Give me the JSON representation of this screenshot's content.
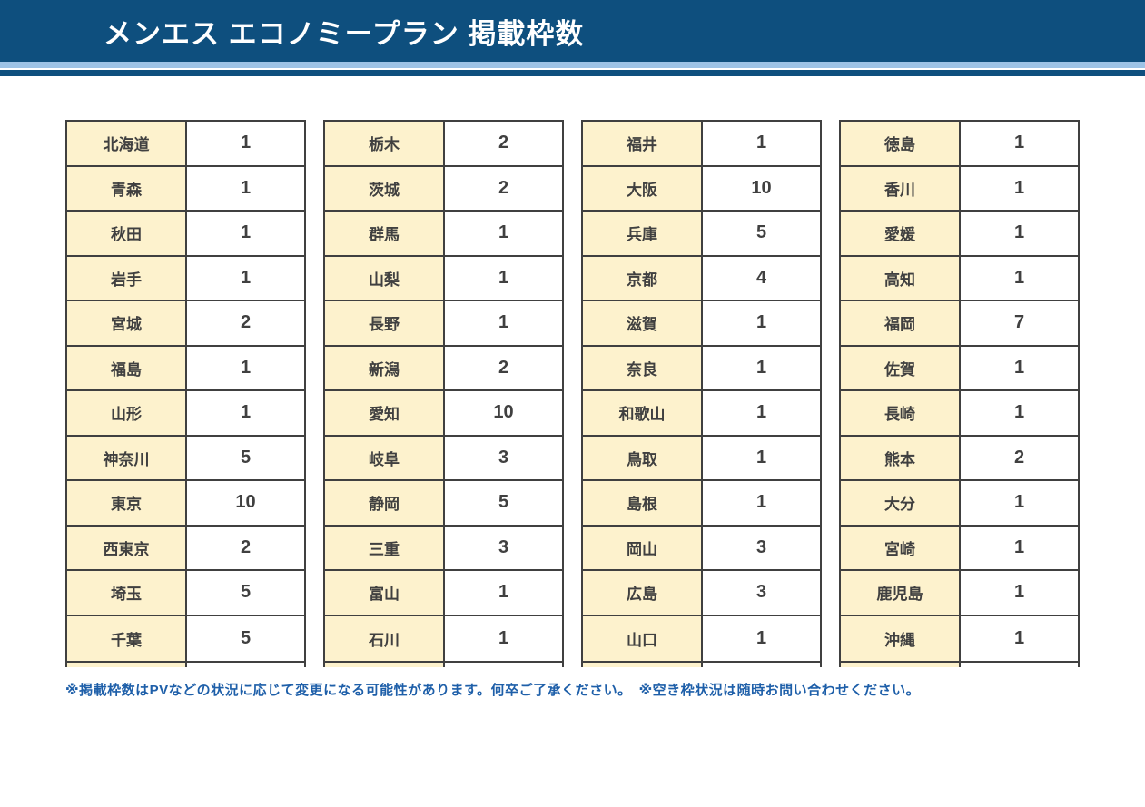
{
  "header": {
    "title": "メンエス エコノミープラン 掲載枠数"
  },
  "tables": [
    {
      "rows": [
        {
          "region": "北海道",
          "slots": "1"
        },
        {
          "region": "青森",
          "slots": "1"
        },
        {
          "region": "秋田",
          "slots": "1"
        },
        {
          "region": "岩手",
          "slots": "1"
        },
        {
          "region": "宮城",
          "slots": "2"
        },
        {
          "region": "福島",
          "slots": "1"
        },
        {
          "region": "山形",
          "slots": "1"
        },
        {
          "region": "神奈川",
          "slots": "5"
        },
        {
          "region": "東京",
          "slots": "10"
        },
        {
          "region": "西東京",
          "slots": "2"
        },
        {
          "region": "埼玉",
          "slots": "5"
        },
        {
          "region": "千葉",
          "slots": "5"
        }
      ]
    },
    {
      "rows": [
        {
          "region": "栃木",
          "slots": "2"
        },
        {
          "region": "茨城",
          "slots": "2"
        },
        {
          "region": "群馬",
          "slots": "1"
        },
        {
          "region": "山梨",
          "slots": "1"
        },
        {
          "region": "長野",
          "slots": "1"
        },
        {
          "region": "新潟",
          "slots": "2"
        },
        {
          "region": "愛知",
          "slots": "10"
        },
        {
          "region": "岐阜",
          "slots": "3"
        },
        {
          "region": "静岡",
          "slots": "5"
        },
        {
          "region": "三重",
          "slots": "3"
        },
        {
          "region": "富山",
          "slots": "1"
        },
        {
          "region": "石川",
          "slots": "1"
        }
      ]
    },
    {
      "rows": [
        {
          "region": "福井",
          "slots": "1"
        },
        {
          "region": "大阪",
          "slots": "10"
        },
        {
          "region": "兵庫",
          "slots": "5"
        },
        {
          "region": "京都",
          "slots": "4"
        },
        {
          "region": "滋賀",
          "slots": "1"
        },
        {
          "region": "奈良",
          "slots": "1"
        },
        {
          "region": "和歌山",
          "slots": "1"
        },
        {
          "region": "鳥取",
          "slots": "1"
        },
        {
          "region": "島根",
          "slots": "1"
        },
        {
          "region": "岡山",
          "slots": "3"
        },
        {
          "region": "広島",
          "slots": "3"
        },
        {
          "region": "山口",
          "slots": "1"
        }
      ]
    },
    {
      "rows": [
        {
          "region": "徳島",
          "slots": "1"
        },
        {
          "region": "香川",
          "slots": "1"
        },
        {
          "region": "愛媛",
          "slots": "1"
        },
        {
          "region": "高知",
          "slots": "1"
        },
        {
          "region": "福岡",
          "slots": "7"
        },
        {
          "region": "佐賀",
          "slots": "1"
        },
        {
          "region": "長崎",
          "slots": "1"
        },
        {
          "region": "熊本",
          "slots": "2"
        },
        {
          "region": "大分",
          "slots": "1"
        },
        {
          "region": "宮崎",
          "slots": "1"
        },
        {
          "region": "鹿児島",
          "slots": "1"
        },
        {
          "region": "沖縄",
          "slots": "1"
        }
      ]
    }
  ],
  "footnote": "※掲載枠数はPVなどの状況に応じて変更になる可能性があります。何卒ご了承ください。　※空き枠状況は随時お問い合わせください。",
  "colors": {
    "navy": "#0e4f7e",
    "stripe": "#9dc3e6",
    "cell-beige": "#fdf2cd",
    "border": "#404040",
    "cell-text": "#404040",
    "note-blue": "#1e5fa9"
  }
}
